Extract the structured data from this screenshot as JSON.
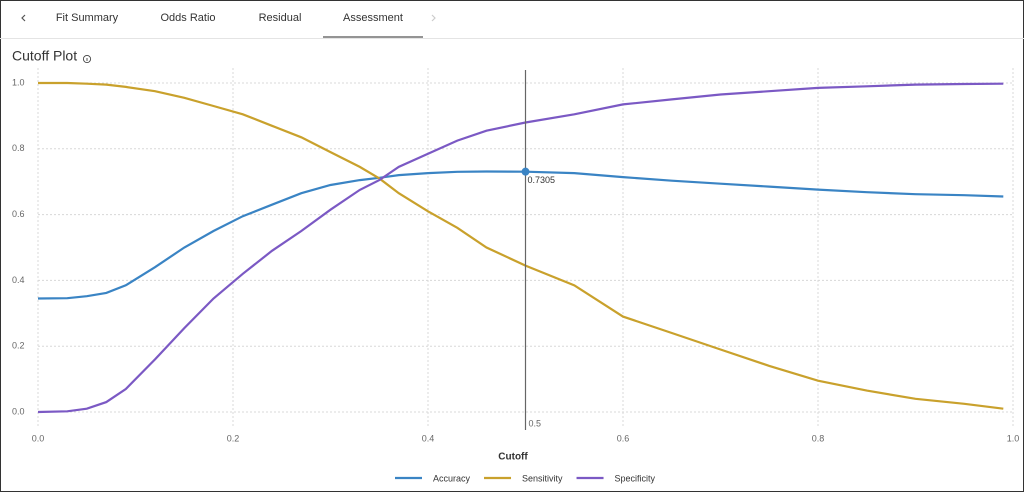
{
  "tabs": [
    "Fit Summary",
    "Odds Ratio",
    "Residual",
    "Assessment"
  ],
  "active_tab": 3,
  "chart_data": {
    "type": "line",
    "title": "Cutoff Plot",
    "x_label": "Cutoff",
    "x": [
      0,
      0.03,
      0.05,
      0.07,
      0.09,
      0.12,
      0.15,
      0.18,
      0.21,
      0.24,
      0.27,
      0.3,
      0.33,
      0.35,
      0.37,
      0.4,
      0.43,
      0.46,
      0.5,
      0.55,
      0.6,
      0.65,
      0.7,
      0.75,
      0.8,
      0.85,
      0.9,
      0.95,
      0.99
    ],
    "series": [
      {
        "name": "Accuracy",
        "color": "#3a84c4",
        "values": [
          0.345,
          0.346,
          0.352,
          0.362,
          0.385,
          0.44,
          0.5,
          0.55,
          0.595,
          0.63,
          0.665,
          0.69,
          0.705,
          0.712,
          0.72,
          0.726,
          0.73,
          0.731,
          0.7305,
          0.726,
          0.714,
          0.703,
          0.694,
          0.685,
          0.676,
          0.668,
          0.662,
          0.659,
          0.655
        ]
      },
      {
        "name": "Sensitivity",
        "color": "#c9a12c",
        "values": [
          1.0,
          1.0,
          0.998,
          0.995,
          0.988,
          0.975,
          0.955,
          0.93,
          0.905,
          0.87,
          0.835,
          0.79,
          0.745,
          0.71,
          0.665,
          0.61,
          0.56,
          0.5,
          0.445,
          0.385,
          0.29,
          0.24,
          0.19,
          0.14,
          0.095,
          0.065,
          0.04,
          0.025,
          0.01
        ]
      },
      {
        "name": "Specificity",
        "color": "#7b59c4",
        "values": [
          0,
          0.002,
          0.01,
          0.03,
          0.07,
          0.16,
          0.255,
          0.345,
          0.42,
          0.49,
          0.55,
          0.615,
          0.675,
          0.705,
          0.745,
          0.785,
          0.825,
          0.855,
          0.88,
          0.905,
          0.935,
          0.95,
          0.965,
          0.975,
          0.985,
          0.99,
          0.995,
          0.997,
          0.998
        ]
      }
    ],
    "cutoff": {
      "x": 0.5,
      "y": 0.7305,
      "color": "#3a84c4"
    },
    "xlim": [
      0,
      1
    ],
    "ylim": [
      0,
      1
    ],
    "xticks": [
      {
        "value": 0,
        "label": "0.0"
      },
      0.2,
      0.4,
      0.6,
      0.8,
      {
        "value": 1,
        "label": "1.0"
      }
    ],
    "yticks": [
      {
        "value": 0,
        "label": "0.0"
      },
      0.2,
      0.4,
      0.6,
      0.8,
      {
        "value": 1,
        "label": "1.0"
      }
    ],
    "grid": true,
    "legend": "bottom"
  }
}
